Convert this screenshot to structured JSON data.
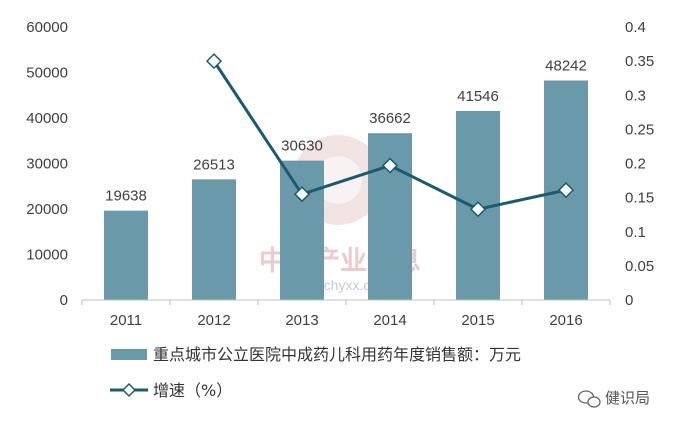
{
  "chart_data": {
    "type": "bar",
    "categories": [
      "2011",
      "2012",
      "2013",
      "2014",
      "2015",
      "2016"
    ],
    "series": [
      {
        "name": "重点城市公立医院中成药儿科用药年度销售额：万元",
        "type": "bar",
        "axis": "left",
        "values": [
          19638,
          26513,
          30630,
          36662,
          41546,
          48242
        ],
        "data_labels": [
          "19638",
          "26513",
          "30630",
          "36662",
          "41546",
          "48242"
        ],
        "color": "#6a99aa"
      },
      {
        "name": "增速（%）",
        "type": "line",
        "axis": "right",
        "values": [
          null,
          0.35,
          0.155,
          0.197,
          0.133,
          0.161
        ],
        "color": "#1d5a6e",
        "marker": "diamond"
      }
    ],
    "y_left": {
      "ylim": [
        0,
        60000
      ],
      "ticks": [
        "0",
        "10000",
        "20000",
        "30000",
        "40000",
        "50000",
        "60000"
      ]
    },
    "y_right": {
      "ylim": [
        0,
        0.4
      ],
      "ticks": [
        "0",
        "0.05",
        "0.1",
        "0.15",
        "0.2",
        "0.25",
        "0.3",
        "0.35",
        "0.4"
      ]
    },
    "grid": false,
    "legend_position": "bottom-left"
  },
  "watermark": {
    "text": "中国产业信息",
    "url": "www.chyxx.com"
  },
  "brand": {
    "name": "健识局",
    "icon": "wechat-icon"
  }
}
